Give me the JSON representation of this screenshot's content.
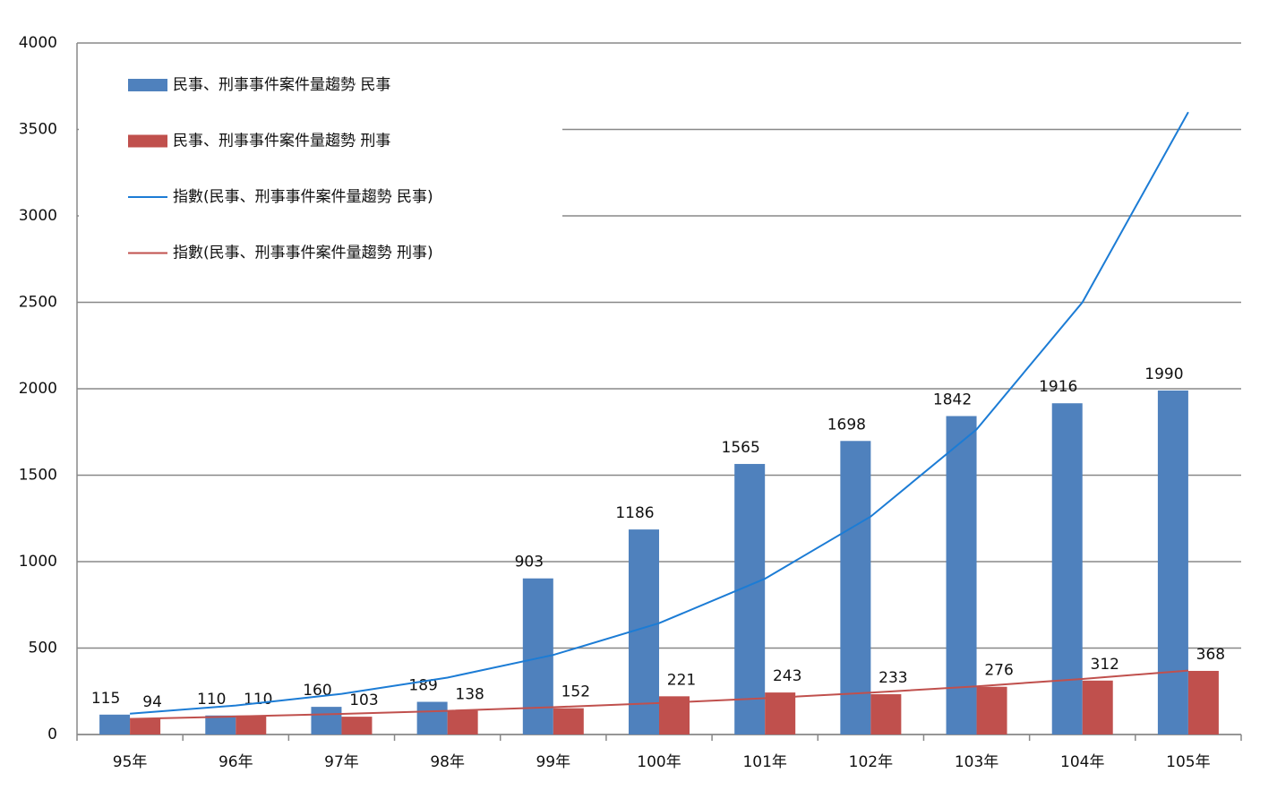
{
  "chart_data": {
    "type": "bar",
    "categories": [
      "95年",
      "96年",
      "97年",
      "98年",
      "99年",
      "100年",
      "101年",
      "102年",
      "103年",
      "104年",
      "105年"
    ],
    "series": [
      {
        "name": "民事、刑事事件案件量趨勢 民事",
        "color": "#4f81bd",
        "values": [
          115,
          110,
          160,
          189,
          903,
          1186,
          1565,
          1698,
          1842,
          1916,
          1990
        ]
      },
      {
        "name": "民事、刑事事件案件量趨勢 刑事",
        "color": "#c0504d",
        "values": [
          94,
          110,
          103,
          138,
          152,
          221,
          243,
          233,
          276,
          312,
          368
        ]
      },
      {
        "name": "指數(民事、刑事事件案件量趨勢 民事)",
        "type": "line",
        "color": "#1c7cd5",
        "values": [
          120,
          168,
          235,
          329,
          460,
          644,
          901,
          1261,
          1765,
          2500,
          3600
        ]
      },
      {
        "name": "指數(民事、刑事事件案件量趨勢 刑事)",
        "type": "line",
        "color": "#c0504d",
        "values": [
          90,
          104,
          119,
          137,
          158,
          182,
          210,
          242,
          279,
          321,
          370
        ]
      }
    ],
    "ylim": [
      0,
      4000
    ],
    "yticks": [
      0,
      500,
      1000,
      1500,
      2000,
      2500,
      3000,
      3500,
      4000
    ],
    "grid": true,
    "legend": "top-left"
  }
}
